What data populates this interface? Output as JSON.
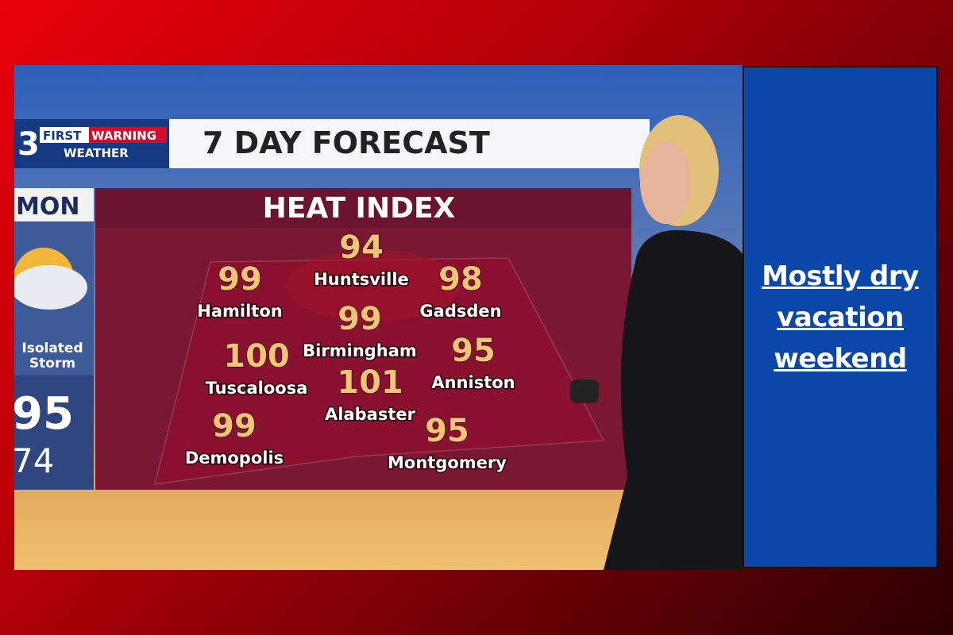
{
  "logo": {
    "channel": "3",
    "first": "FIRST",
    "warning": "WARNING",
    "weather": "WEATHER"
  },
  "header_title": "7 DAY FORECAST",
  "map_title": "HEAT INDEX",
  "day_panel": {
    "day": "MON",
    "condition_line1": "Isolated",
    "condition_line2": "Storm",
    "high": 95,
    "low": 74
  },
  "cities": [
    {
      "name": "Huntsville",
      "value": 94
    },
    {
      "name": "Hamilton",
      "value": 99
    },
    {
      "name": "Gadsden",
      "value": 98
    },
    {
      "name": "Birmingham",
      "value": 99
    },
    {
      "name": "Tuscaloosa",
      "value": 100
    },
    {
      "name": "Anniston",
      "value": 95
    },
    {
      "name": "Alabaster",
      "value": 101
    },
    {
      "name": "Demopolis",
      "value": 99
    },
    {
      "name": "Montgomery",
      "value": 95
    }
  ],
  "headline": "Mostly dry vacation weekend"
}
